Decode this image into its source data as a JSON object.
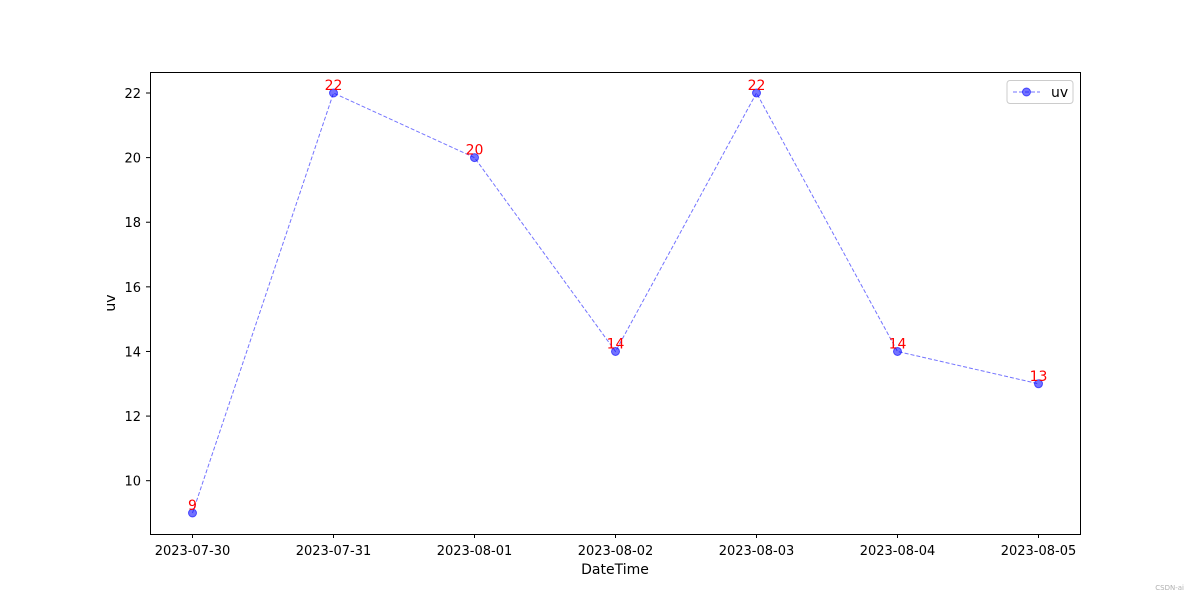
{
  "chart_data": {
    "type": "line",
    "title": "",
    "xlabel": "DateTime",
    "ylabel": "uv",
    "x": [
      "2023-07-30",
      "2023-07-31",
      "2023-08-01",
      "2023-08-02",
      "2023-08-03",
      "2023-08-04",
      "2023-08-05"
    ],
    "series": [
      {
        "name": "uv",
        "values": [
          9,
          22,
          20,
          14,
          22,
          14,
          13
        ],
        "color": "#0000ff",
        "line_style": "dashed",
        "marker": "circle"
      }
    ],
    "yticks": [
      10,
      12,
      14,
      16,
      18,
      20,
      22
    ],
    "ylim": [
      8.35,
      22.65
    ],
    "grid": false,
    "legend_position": "upper right",
    "data_label_color": "#ff0000"
  },
  "watermark": "CSDN-ai"
}
